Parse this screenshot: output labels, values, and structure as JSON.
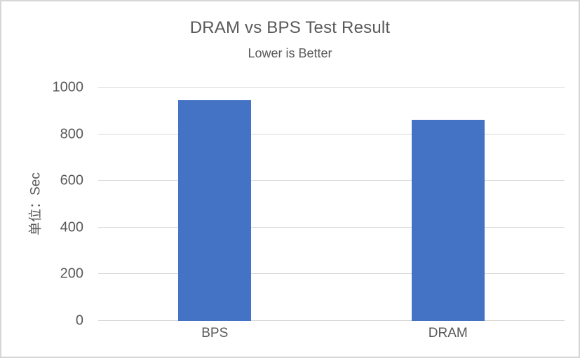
{
  "chart_data": {
    "type": "bar",
    "title": "DRAM vs BPS Test Result",
    "subtitle": "Lower is Better",
    "ylabel": "单位：Sec",
    "xlabel": "",
    "categories": [
      "BPS",
      "DRAM"
    ],
    "values": [
      945,
      863
    ],
    "ylim": [
      0,
      1000
    ],
    "yticks": [
      0,
      200,
      400,
      600,
      800,
      1000
    ],
    "grid": "horizontal-on",
    "legend": "none",
    "data_labels": "none"
  },
  "colors": {
    "bar": "#4472C4",
    "text": "#595959",
    "gridline": "#D9D9D9",
    "frame_border": "#D6D6D6",
    "background": "#FFFFFF"
  }
}
